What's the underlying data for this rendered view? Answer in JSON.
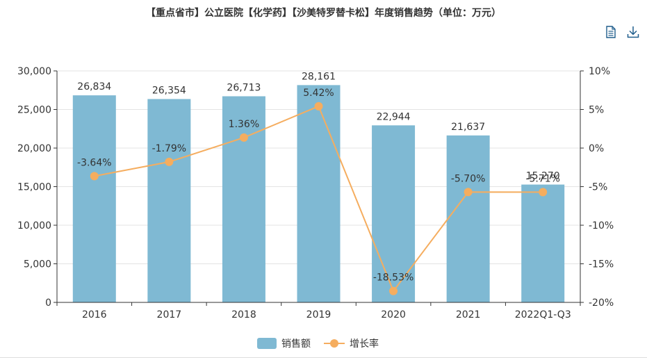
{
  "title": "【重点省市】公立医院【化学药】【沙美特罗替卡松】年度销售趋势（单位：万元）",
  "toolbar": {
    "data_view_icon": "document-icon",
    "download_icon": "download-icon"
  },
  "colors": {
    "bar": "#7fb9d3",
    "line": "#f5ad5f",
    "axis": "#333333",
    "grid": "#e3e3e3"
  },
  "chart_data": {
    "type": "bar",
    "categories": [
      "2016",
      "2017",
      "2018",
      "2019",
      "2020",
      "2021",
      "2022Q1-Q3"
    ],
    "series": [
      {
        "name": "销售额",
        "type": "bar",
        "axis": "left",
        "values": [
          26834,
          26354,
          26713,
          28161,
          22944,
          21637,
          15270
        ],
        "labels": [
          "26,834",
          "26,354",
          "26,713",
          "28,161",
          "22,944",
          "21,637",
          "15,270"
        ]
      },
      {
        "name": "增长率",
        "type": "line",
        "axis": "right",
        "values": [
          -3.64,
          -1.79,
          1.36,
          5.42,
          -18.53,
          -5.7,
          -5.71
        ],
        "labels": [
          "-3.64%",
          "-1.79%",
          "1.36%",
          "5.42%",
          "-18.53%",
          "-5.70%",
          "-5.71%"
        ]
      }
    ],
    "y_left": {
      "min": 0,
      "max": 30000,
      "ticks": [
        0,
        5000,
        10000,
        15000,
        20000,
        25000,
        30000
      ],
      "tick_labels": [
        "0",
        "5,000",
        "10,000",
        "15,000",
        "20,000",
        "25,000",
        "30,000"
      ]
    },
    "y_right": {
      "min": -20,
      "max": 10,
      "ticks": [
        -20,
        -15,
        -10,
        -5,
        0,
        5,
        10
      ],
      "tick_labels": [
        "-20%",
        "-15%",
        "-10%",
        "-5%",
        "0%",
        "5%",
        "10%"
      ]
    },
    "legend": {
      "position": "bottom",
      "items": [
        "销售额",
        "增长率"
      ]
    },
    "grid": true
  }
}
